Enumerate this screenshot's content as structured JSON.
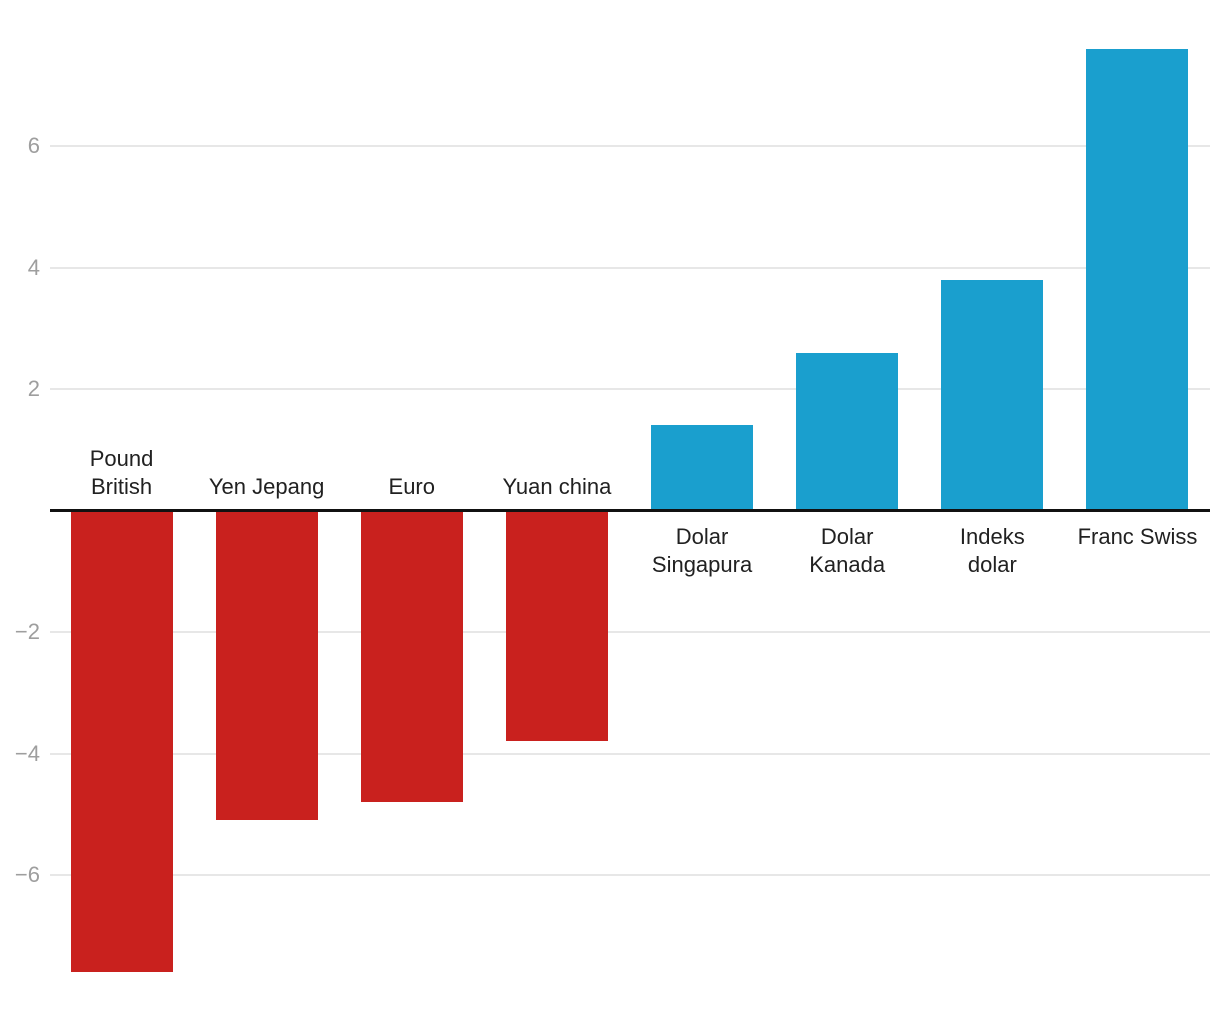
{
  "page": {
    "background": "#FFFFFF"
  },
  "chart_data": {
    "type": "bar",
    "title": "",
    "xlabel": "",
    "ylabel": "",
    "legend": "none",
    "grid": true,
    "categories": [
      "Pound British",
      "Yen Jepang",
      "Euro",
      "Yuan china",
      "Dolar Singapura",
      "Dolar Kanada",
      "Indeks dolar",
      "Franc Swiss"
    ],
    "category_label_lines": [
      "Pound\nBritish",
      "Yen Jepang",
      "Euro",
      "Yuan china",
      "Dolar\nSingapura",
      "Dolar\nKanada",
      "Indeks\ndolar",
      "Franc Swiss"
    ],
    "values": [
      -7.6,
      -5.1,
      -4.8,
      -3.8,
      1.4,
      2.6,
      3.8,
      7.6
    ],
    "colors": {
      "negative": "#C9211E",
      "positive": "#1A9FCE",
      "gridline": "#E7E7E7",
      "baseline": "#111111",
      "tick_text": "#9E9E9E",
      "label_text": "#212121"
    },
    "y_axis": {
      "range": [
        -8.4,
        8.4
      ],
      "ticks": [
        {
          "label": "6",
          "value": 6
        },
        {
          "label": "4",
          "value": 4
        },
        {
          "label": "2",
          "value": 2
        },
        {
          "label": "−2",
          "value": -2
        },
        {
          "label": "−4",
          "value": -4
        },
        {
          "label": "−6",
          "value": -6
        }
      ]
    }
  }
}
